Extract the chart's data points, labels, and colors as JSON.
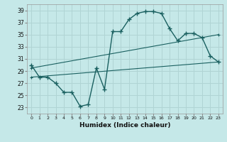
{
  "title": "",
  "xlabel": "Humidex (Indice chaleur)",
  "ylabel": "",
  "bg_color": "#c5e8e8",
  "grid_color": "#b0d4d4",
  "line_color": "#1a6060",
  "xlim": [
    -0.5,
    23.5
  ],
  "ylim": [
    22.0,
    40.0
  ],
  "xticks": [
    0,
    1,
    2,
    3,
    4,
    5,
    6,
    7,
    8,
    9,
    10,
    11,
    12,
    13,
    14,
    15,
    16,
    17,
    18,
    19,
    20,
    21,
    22,
    23
  ],
  "yticks": [
    23,
    25,
    27,
    29,
    31,
    33,
    35,
    37,
    39
  ],
  "main_x": [
    0,
    1,
    2,
    3,
    4,
    5,
    6,
    7,
    8,
    9,
    10,
    11,
    12,
    13,
    14,
    15,
    16,
    17,
    18,
    19,
    20,
    21,
    22,
    23
  ],
  "main_y": [
    30.0,
    28.0,
    28.0,
    27.0,
    25.5,
    25.5,
    23.2,
    23.5,
    29.5,
    26.0,
    35.5,
    35.5,
    37.5,
    38.5,
    38.8,
    38.8,
    38.5,
    36.0,
    34.0,
    35.2,
    35.2,
    34.5,
    31.5,
    30.5
  ],
  "line1_x": [
    0,
    23
  ],
  "line1_y": [
    29.5,
    35.0
  ],
  "line2_x": [
    0,
    23
  ],
  "line2_y": [
    28.0,
    30.5
  ]
}
